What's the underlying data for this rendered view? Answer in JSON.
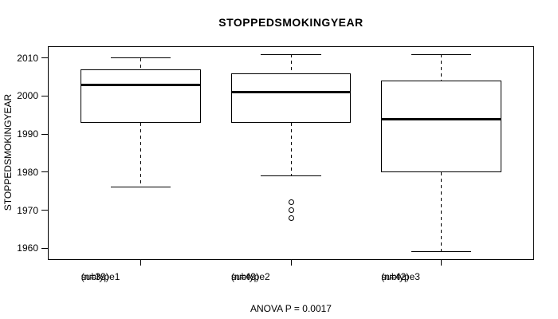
{
  "title": "STOPPEDSMOKINGYEAR",
  "ylabel": "STOPPEDSMOKINGYEAR",
  "footer": "ANOVA P = 0.0017",
  "chart_data": {
    "type": "boxplot",
    "title": "STOPPEDSMOKINGYEAR",
    "ylabel": "STOPPEDSMOKINGYEAR",
    "annotation": "ANOVA P = 0.0017",
    "grid": false,
    "ylim": [
      1956.9,
      2013.1
    ],
    "yticks": [
      1960,
      1970,
      1980,
      1990,
      2000,
      2010
    ],
    "xlim": [
      0.38,
      3.62
    ],
    "box_width": 0.8,
    "cap_width": 0.4,
    "line_color": "#000000",
    "box_fill": "#ffffff",
    "background": "#ffffff",
    "groups": [
      {
        "label": "subtype1",
        "sublabel": "(n=39)",
        "n": 39,
        "x": 1,
        "whisker_low": 1976,
        "q1": 1993,
        "median": 2003,
        "q3": 2007,
        "whisker_high": 2010,
        "outliers": []
      },
      {
        "label": "subtype2",
        "sublabel": "(n=49)",
        "n": 49,
        "x": 2,
        "whisker_low": 1979,
        "q1": 1993,
        "median": 2001,
        "q3": 2006,
        "whisker_high": 2011,
        "outliers": [
          1972,
          1970,
          1968
        ]
      },
      {
        "label": "subtype3",
        "sublabel": "(n=42)",
        "n": 42,
        "x": 3,
        "whisker_low": 1959,
        "q1": 1980,
        "median": 1994,
        "q3": 2004,
        "whisker_high": 2011,
        "outliers": []
      }
    ]
  }
}
